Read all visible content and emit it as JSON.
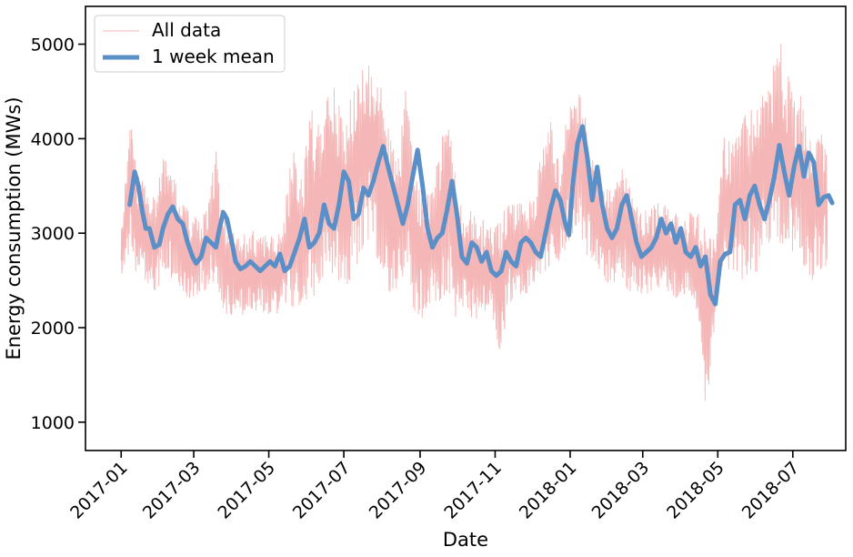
{
  "chart_data": {
    "type": "line",
    "title": "",
    "xlabel": "Date",
    "ylabel": "Energy consumption (MWs)",
    "x_range": [
      "2016-12-03",
      "2018-08-13"
    ],
    "ylim": [
      700,
      5400
    ],
    "x_ticks": [
      "2017-01",
      "2017-03",
      "2017-05",
      "2017-07",
      "2017-09",
      "2017-11",
      "2018-01",
      "2018-03",
      "2018-05",
      "2018-07"
    ],
    "y_ticks": [
      1000,
      2000,
      3000,
      4000,
      5000
    ],
    "grid": false,
    "legend_position": "upper-left",
    "series": [
      {
        "name": "All data",
        "style": "thin line",
        "color": "#f4b6b6",
        "points": [
          [
            "2017-01-01",
            2500,
            3050
          ],
          [
            "2017-01-08",
            2700,
            4300
          ],
          [
            "2017-01-15",
            2350,
            3700
          ],
          [
            "2017-01-22",
            2450,
            3500
          ],
          [
            "2017-01-29",
            2200,
            3500
          ],
          [
            "2017-02-05",
            2500,
            3900
          ],
          [
            "2017-02-12",
            2450,
            3700
          ],
          [
            "2017-02-19",
            2350,
            3350
          ],
          [
            "2017-02-26",
            2250,
            3300
          ],
          [
            "2017-03-05",
            2300,
            3300
          ],
          [
            "2017-03-12",
            2350,
            3300
          ],
          [
            "2017-03-19",
            2450,
            3950
          ],
          [
            "2017-03-26",
            2050,
            3200
          ],
          [
            "2017-04-02",
            2050,
            3050
          ],
          [
            "2017-04-09",
            2100,
            3000
          ],
          [
            "2017-04-16",
            2050,
            3100
          ],
          [
            "2017-04-23",
            2150,
            3000
          ],
          [
            "2017-04-30",
            2100,
            3150
          ],
          [
            "2017-05-07",
            2100,
            3000
          ],
          [
            "2017-05-14",
            2200,
            3300
          ],
          [
            "2017-05-21",
            2100,
            4100
          ],
          [
            "2017-05-28",
            2200,
            3600
          ],
          [
            "2017-06-04",
            2200,
            4500
          ],
          [
            "2017-06-11",
            2300,
            4200
          ],
          [
            "2017-06-18",
            2500,
            4800
          ],
          [
            "2017-06-25",
            2300,
            4600
          ],
          [
            "2017-07-02",
            2300,
            4200
          ],
          [
            "2017-07-09",
            2500,
            4700
          ],
          [
            "2017-07-16",
            2700,
            4900
          ],
          [
            "2017-07-23",
            2900,
            5000
          ],
          [
            "2017-07-30",
            2500,
            4800
          ],
          [
            "2017-08-06",
            2300,
            4200
          ],
          [
            "2017-08-13",
            2300,
            3800
          ],
          [
            "2017-08-20",
            2500,
            4700
          ],
          [
            "2017-08-27",
            2100,
            3800
          ],
          [
            "2017-09-03",
            2000,
            3500
          ],
          [
            "2017-09-10",
            2200,
            3600
          ],
          [
            "2017-09-17",
            2200,
            3900
          ],
          [
            "2017-09-24",
            2300,
            4650
          ],
          [
            "2017-10-01",
            2000,
            3400
          ],
          [
            "2017-10-08",
            2100,
            3300
          ],
          [
            "2017-10-15",
            2000,
            3300
          ],
          [
            "2017-10-22",
            2100,
            3200
          ],
          [
            "2017-10-29",
            2150,
            3100
          ],
          [
            "2017-11-05",
            1550,
            3250
          ],
          [
            "2017-11-12",
            2200,
            3350
          ],
          [
            "2017-11-19",
            2300,
            3400
          ],
          [
            "2017-11-26",
            2300,
            3300
          ],
          [
            "2017-12-03",
            2400,
            3500
          ],
          [
            "2017-12-10",
            2500,
            4000
          ],
          [
            "2017-12-17",
            2500,
            4300
          ],
          [
            "2017-12-24",
            2600,
            3700
          ],
          [
            "2017-12-31",
            2800,
            4600
          ],
          [
            "2018-01-07",
            3000,
            4650
          ],
          [
            "2018-01-14",
            2700,
            4300
          ],
          [
            "2018-01-21",
            2600,
            3700
          ],
          [
            "2018-01-28",
            2400,
            3600
          ],
          [
            "2018-02-04",
            2400,
            3500
          ],
          [
            "2018-02-11",
            2500,
            3800
          ],
          [
            "2018-02-18",
            2300,
            3600
          ],
          [
            "2018-02-25",
            2300,
            3300
          ],
          [
            "2018-03-04",
            2300,
            3300
          ],
          [
            "2018-03-11",
            2300,
            3350
          ],
          [
            "2018-03-18",
            2400,
            3400
          ],
          [
            "2018-03-25",
            2300,
            3300
          ],
          [
            "2018-04-01",
            2200,
            3200
          ],
          [
            "2018-04-08",
            2300,
            3300
          ],
          [
            "2018-04-15",
            2100,
            3300
          ],
          [
            "2018-04-22",
            900,
            3200
          ],
          [
            "2018-04-29",
            2000,
            3000
          ],
          [
            "2018-05-06",
            2500,
            4100
          ],
          [
            "2018-05-13",
            2500,
            4000
          ],
          [
            "2018-05-20",
            2400,
            4200
          ],
          [
            "2018-05-27",
            2400,
            4500
          ],
          [
            "2018-06-03",
            2500,
            4650
          ],
          [
            "2018-06-10",
            2700,
            4600
          ],
          [
            "2018-06-17",
            2800,
            5200
          ],
          [
            "2018-06-24",
            2600,
            5100
          ],
          [
            "2018-07-01",
            2700,
            4600
          ],
          [
            "2018-07-08",
            2600,
            4600
          ],
          [
            "2018-07-15",
            2400,
            4200
          ],
          [
            "2018-07-22",
            2500,
            4200
          ],
          [
            "2018-07-29",
            2600,
            4150
          ]
        ]
      },
      {
        "name": "1 week  mean",
        "style": "thick line",
        "color": "#5b8fc7",
        "points": [
          [
            "2017-01-08",
            3300
          ],
          [
            "2017-01-12",
            3650
          ],
          [
            "2017-01-15",
            3500
          ],
          [
            "2017-01-18",
            3250
          ],
          [
            "2017-01-21",
            3050
          ],
          [
            "2017-01-24",
            3050
          ],
          [
            "2017-01-28",
            2850
          ],
          [
            "2017-02-01",
            2880
          ],
          [
            "2017-02-04",
            3050
          ],
          [
            "2017-02-08",
            3200
          ],
          [
            "2017-02-12",
            3280
          ],
          [
            "2017-02-16",
            3150
          ],
          [
            "2017-02-20",
            3100
          ],
          [
            "2017-02-24",
            2900
          ],
          [
            "2017-02-28",
            2750
          ],
          [
            "2017-03-03",
            2680
          ],
          [
            "2017-03-07",
            2750
          ],
          [
            "2017-03-11",
            2950
          ],
          [
            "2017-03-15",
            2900
          ],
          [
            "2017-03-19",
            2850
          ],
          [
            "2017-03-22",
            3050
          ],
          [
            "2017-03-25",
            3220
          ],
          [
            "2017-03-28",
            3150
          ],
          [
            "2017-04-01",
            2900
          ],
          [
            "2017-04-04",
            2700
          ],
          [
            "2017-04-08",
            2620
          ],
          [
            "2017-04-12",
            2650
          ],
          [
            "2017-04-16",
            2700
          ],
          [
            "2017-04-20",
            2650
          ],
          [
            "2017-04-24",
            2600
          ],
          [
            "2017-04-28",
            2650
          ],
          [
            "2017-05-02",
            2700
          ],
          [
            "2017-05-06",
            2650
          ],
          [
            "2017-05-10",
            2780
          ],
          [
            "2017-05-14",
            2600
          ],
          [
            "2017-05-18",
            2650
          ],
          [
            "2017-05-22",
            2800
          ],
          [
            "2017-05-26",
            2950
          ],
          [
            "2017-05-30",
            3150
          ],
          [
            "2017-06-03",
            2850
          ],
          [
            "2017-06-07",
            2900
          ],
          [
            "2017-06-11",
            3000
          ],
          [
            "2017-06-15",
            3300
          ],
          [
            "2017-06-19",
            3100
          ],
          [
            "2017-06-23",
            3050
          ],
          [
            "2017-06-27",
            3300
          ],
          [
            "2017-07-01",
            3650
          ],
          [
            "2017-07-05",
            3550
          ],
          [
            "2017-07-09",
            3150
          ],
          [
            "2017-07-13",
            3200
          ],
          [
            "2017-07-17",
            3480
          ],
          [
            "2017-07-21",
            3400
          ],
          [
            "2017-07-25",
            3550
          ],
          [
            "2017-07-29",
            3750
          ],
          [
            "2017-08-02",
            3920
          ],
          [
            "2017-08-06",
            3700
          ],
          [
            "2017-08-10",
            3500
          ],
          [
            "2017-08-14",
            3300
          ],
          [
            "2017-08-18",
            3100
          ],
          [
            "2017-08-22",
            3300
          ],
          [
            "2017-08-26",
            3600
          ],
          [
            "2017-08-30",
            3880
          ],
          [
            "2017-09-03",
            3500
          ],
          [
            "2017-09-07",
            3050
          ],
          [
            "2017-09-11",
            2850
          ],
          [
            "2017-09-15",
            2950
          ],
          [
            "2017-09-19",
            3000
          ],
          [
            "2017-09-23",
            3250
          ],
          [
            "2017-09-27",
            3550
          ],
          [
            "2017-10-01",
            3200
          ],
          [
            "2017-10-05",
            2750
          ],
          [
            "2017-10-09",
            2680
          ],
          [
            "2017-10-13",
            2900
          ],
          [
            "2017-10-17",
            2850
          ],
          [
            "2017-10-21",
            2700
          ],
          [
            "2017-10-25",
            2800
          ],
          [
            "2017-10-29",
            2600
          ],
          [
            "2017-11-02",
            2550
          ],
          [
            "2017-11-06",
            2600
          ],
          [
            "2017-11-10",
            2800
          ],
          [
            "2017-11-14",
            2700
          ],
          [
            "2017-11-18",
            2650
          ],
          [
            "2017-11-22",
            2900
          ],
          [
            "2017-11-26",
            2950
          ],
          [
            "2017-11-30",
            2900
          ],
          [
            "2017-12-04",
            2800
          ],
          [
            "2017-12-08",
            2750
          ],
          [
            "2017-12-12",
            3000
          ],
          [
            "2017-12-16",
            3250
          ],
          [
            "2017-12-20",
            3450
          ],
          [
            "2017-12-24",
            3350
          ],
          [
            "2017-12-28",
            3100
          ],
          [
            "2017-12-31",
            2980
          ],
          [
            "2018-01-03",
            3500
          ],
          [
            "2018-01-07",
            3950
          ],
          [
            "2018-01-11",
            4130
          ],
          [
            "2018-01-15",
            3800
          ],
          [
            "2018-01-19",
            3350
          ],
          [
            "2018-01-23",
            3700
          ],
          [
            "2018-01-27",
            3300
          ],
          [
            "2018-01-31",
            3050
          ],
          [
            "2018-02-04",
            2950
          ],
          [
            "2018-02-08",
            3050
          ],
          [
            "2018-02-12",
            3300
          ],
          [
            "2018-02-16",
            3400
          ],
          [
            "2018-02-20",
            3150
          ],
          [
            "2018-02-24",
            2900
          ],
          [
            "2018-02-28",
            2750
          ],
          [
            "2018-03-04",
            2800
          ],
          [
            "2018-03-08",
            2850
          ],
          [
            "2018-03-12",
            2950
          ],
          [
            "2018-03-16",
            3150
          ],
          [
            "2018-03-20",
            3000
          ],
          [
            "2018-03-24",
            3100
          ],
          [
            "2018-03-28",
            2900
          ],
          [
            "2018-04-01",
            3050
          ],
          [
            "2018-04-05",
            2800
          ],
          [
            "2018-04-09",
            2750
          ],
          [
            "2018-04-13",
            2850
          ],
          [
            "2018-04-17",
            2650
          ],
          [
            "2018-04-21",
            2750
          ],
          [
            "2018-04-25",
            2350
          ],
          [
            "2018-04-29",
            2250
          ],
          [
            "2018-05-03",
            2700
          ],
          [
            "2018-05-07",
            2780
          ],
          [
            "2018-05-11",
            2800
          ],
          [
            "2018-05-15",
            3300
          ],
          [
            "2018-05-19",
            3350
          ],
          [
            "2018-05-23",
            3150
          ],
          [
            "2018-05-27",
            3400
          ],
          [
            "2018-05-31",
            3500
          ],
          [
            "2018-06-04",
            3300
          ],
          [
            "2018-06-08",
            3150
          ],
          [
            "2018-06-12",
            3350
          ],
          [
            "2018-06-16",
            3600
          ],
          [
            "2018-06-20",
            3930
          ],
          [
            "2018-06-24",
            3650
          ],
          [
            "2018-06-28",
            3400
          ],
          [
            "2018-07-02",
            3700
          ],
          [
            "2018-07-06",
            3920
          ],
          [
            "2018-07-10",
            3600
          ],
          [
            "2018-07-14",
            3850
          ],
          [
            "2018-07-18",
            3750
          ],
          [
            "2018-07-22",
            3300
          ],
          [
            "2018-07-26",
            3380
          ],
          [
            "2018-07-30",
            3400
          ],
          [
            "2018-08-02",
            3320
          ]
        ]
      }
    ]
  }
}
